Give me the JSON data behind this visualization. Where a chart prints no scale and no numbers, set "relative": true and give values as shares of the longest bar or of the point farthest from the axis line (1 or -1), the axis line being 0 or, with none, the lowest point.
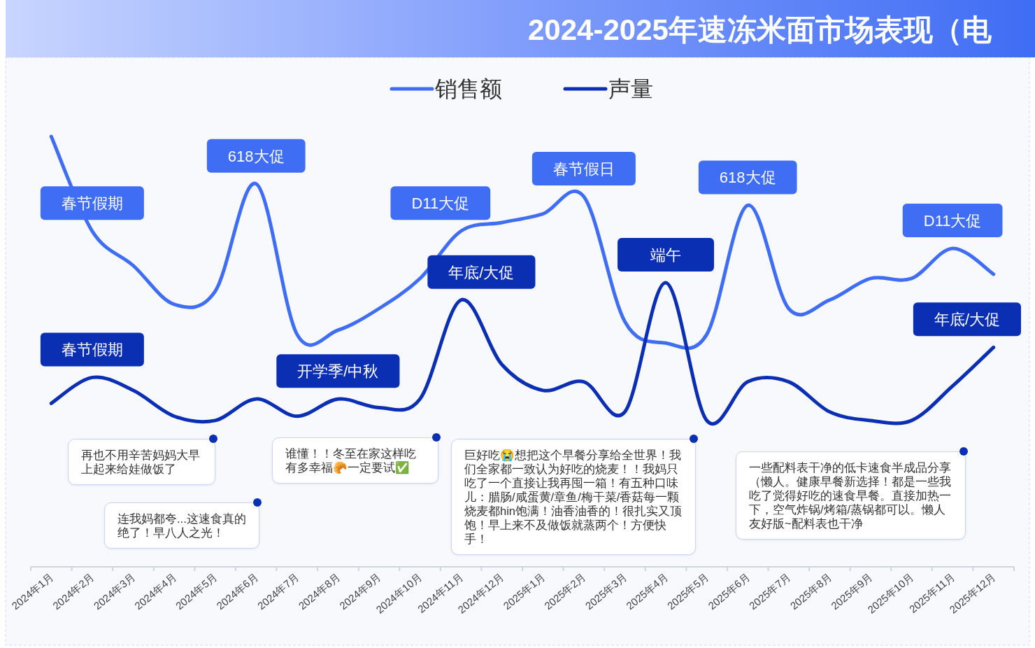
{
  "chart_data": {
    "type": "line",
    "title": "2024-2025年速冻米面市场表现（电",
    "relative": true,
    "legend": "top",
    "categories": [
      "2024年1月",
      "2024年2月",
      "2024年3月",
      "2024年4月",
      "2024年5月",
      "2024年6月",
      "2024年7月",
      "2024年8月",
      "2024年9月",
      "2024年10月",
      "2024年11月",
      "2024年12月",
      "2025年1月",
      "2025年2月",
      "2025年3月",
      "2025年4月",
      "2025年5月",
      "2025年6月",
      "2025年7月",
      "2025年8月",
      "2025年9月",
      "2025年10月",
      "2025年11月",
      "2025年12月"
    ],
    "series": [
      {
        "name": "销售额",
        "color": "#3f6df4",
        "values": [
          1.0,
          0.78,
          0.7,
          0.61,
          0.64,
          0.89,
          0.54,
          0.55,
          0.6,
          0.67,
          0.78,
          0.8,
          0.82,
          0.86,
          0.57,
          0.52,
          0.54,
          0.84,
          0.6,
          0.62,
          0.67,
          0.67,
          0.74,
          0.68
        ]
      },
      {
        "name": "声量",
        "color": "#0b2fb3",
        "values": [
          0.38,
          0.44,
          0.41,
          0.35,
          0.34,
          0.39,
          0.35,
          0.39,
          0.37,
          0.39,
          0.62,
          0.47,
          0.41,
          0.43,
          0.36,
          0.66,
          0.34,
          0.43,
          0.43,
          0.36,
          0.34,
          0.34,
          0.42,
          0.51
        ]
      }
    ],
    "annotations": [
      {
        "text": "春节假期",
        "x": "2024年2月",
        "y": 0.78
      },
      {
        "text": "618大促",
        "x": "2024年6月",
        "y": 0.89
      },
      {
        "text": "D11大促",
        "x": "2024年11月",
        "y": 0.78
      },
      {
        "text": "春节假日",
        "x": "2025年2月",
        "y": 0.86
      },
      {
        "text": "618大促",
        "x": "2025年6月",
        "y": 0.84
      },
      {
        "text": "D11大促",
        "x": "2025年11月",
        "y": 0.74
      },
      {
        "text": "春节假期",
        "x": "2024年2月",
        "y": 0.44
      },
      {
        "text": "开学季/中秋",
        "x": "2024年8月",
        "y": 0.39
      },
      {
        "text": "年底/大促",
        "x": "2024年11月",
        "y": 0.62
      },
      {
        "text": "端午",
        "x": "2025年4月",
        "y": 0.66
      },
      {
        "text": "年底/大促",
        "x": "2025年12月",
        "y": 0.51
      },
      "再也不用辛苦妈妈大早上起来给娃做饭了",
      "连我妈都夸...这速食真的绝了！早八人之光！",
      "谁懂！！冬至在家这样吃有多幸福🥐一定要试✅",
      "巨好吃😭想把这个早餐分享给全世界！我们全家都一致认为好吃的烧麦！！我妈只吃了一个直接让我再囤一箱！有五种口味儿：腊肠/咸蛋黄/章鱼/梅干菜/香菇每一颗烧麦都hin饱满！油香油香的！很扎实又顶饱！早上来不及做饭就蒸两个！方便快手！",
      "一些配料表干净的低卡速食半成品分享（懒人。健康早餐新选择！都是一些我吃了觉得好吃的速食早餐。直接加热一下，空气炸锅/烤箱/蒸锅都可以。懒人友好版~配料表也干净"
    ]
  }
}
